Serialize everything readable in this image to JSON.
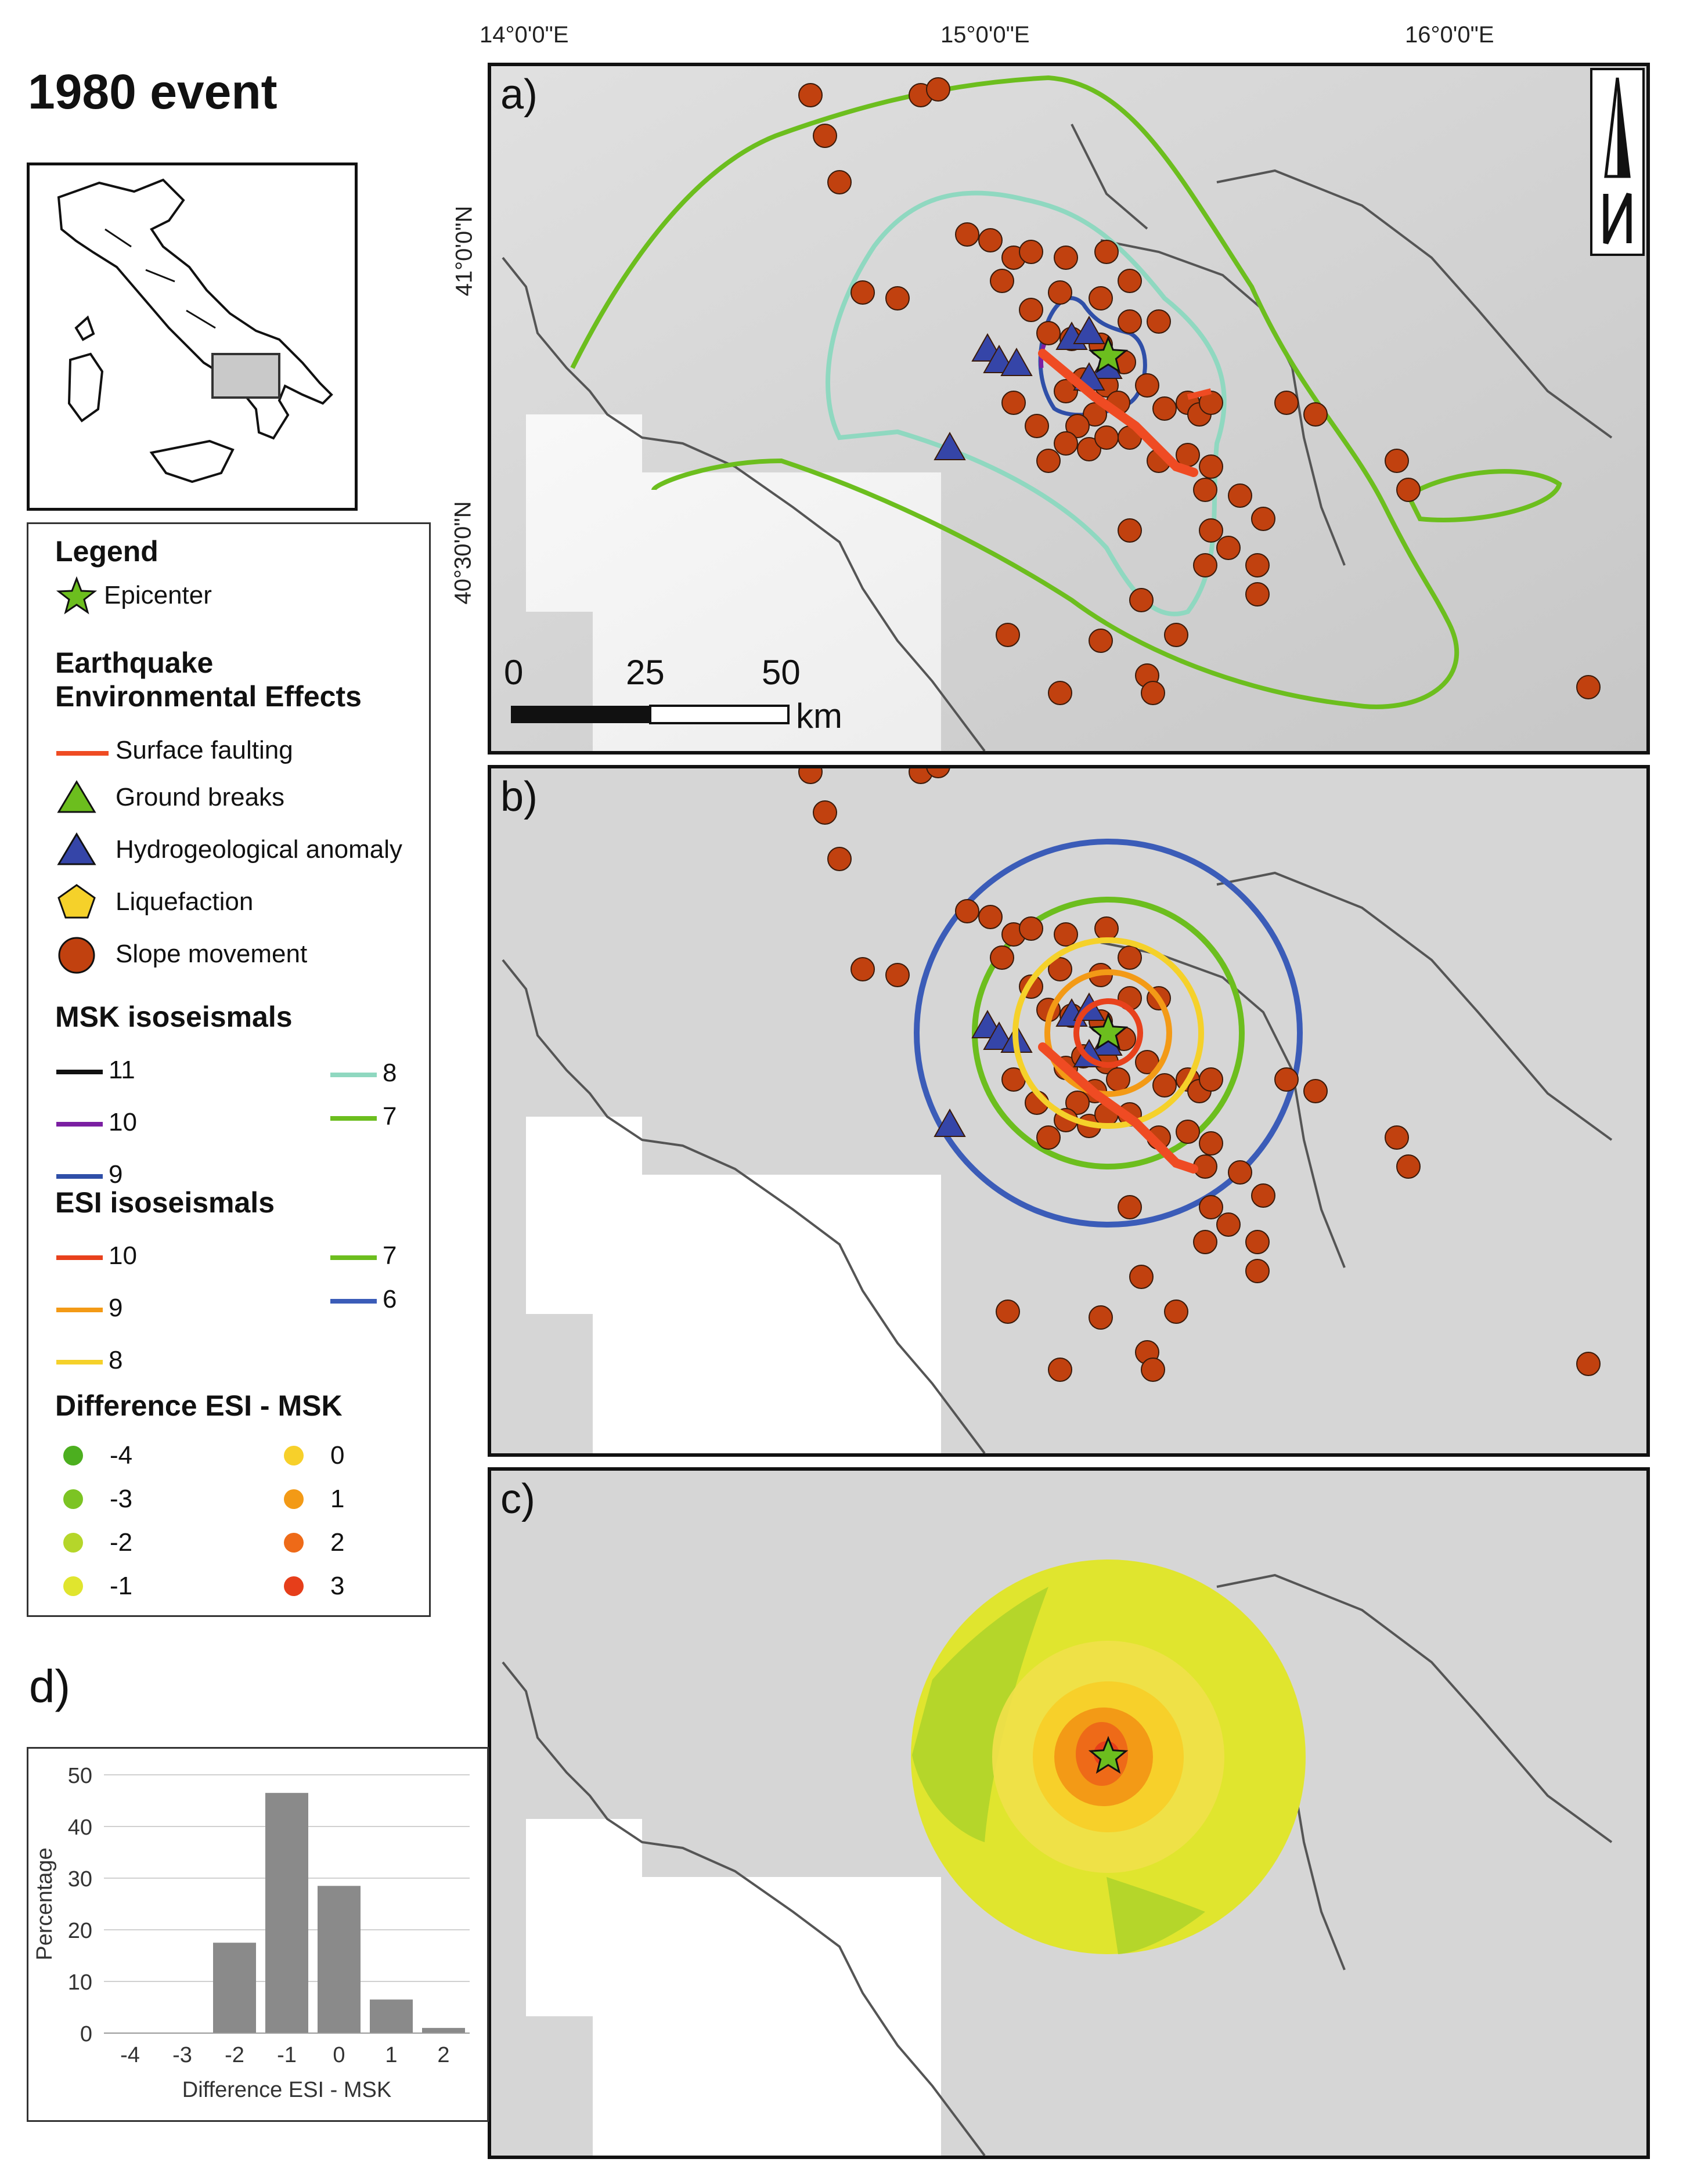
{
  "title": "1980 event",
  "coordinates": {
    "lon": [
      "14°0'0\"E",
      "15°0'0\"E",
      "16°0'0\"E"
    ],
    "lat": [
      "41°0'0\"N",
      "40°30'0\"N"
    ]
  },
  "panels": {
    "a": "a)",
    "b": "b)",
    "c": "c)"
  },
  "scale_bar": {
    "labels": [
      "0",
      "25",
      "50"
    ],
    "unit": "km"
  },
  "north_arrow": "N",
  "legend": {
    "title": "Legend",
    "epicenter": "Epicenter",
    "effects_title_line1": "Earthquake",
    "effects_title_line2": "Environmental Effects",
    "effects": {
      "surface_faulting": "Surface faulting",
      "ground_breaks": "Ground breaks",
      "hydrogeological": "Hydrogeological anomaly",
      "liquefaction": "Liquefaction",
      "slope_movement": "Slope movement"
    },
    "msk_title": "MSK isoseismals",
    "msk": [
      {
        "label": "11",
        "color": "#111111"
      },
      {
        "label": "10",
        "color": "#7b1fa2"
      },
      {
        "label": "9",
        "color": "#2f4fa8"
      },
      {
        "label": "8",
        "color": "#8fd8c0"
      },
      {
        "label": "7",
        "color": "#6cbe1e"
      }
    ],
    "esi_title": "ESI isoseismals",
    "esi": [
      {
        "label": "10",
        "color": "#e8411c"
      },
      {
        "label": "9",
        "color": "#f39a16"
      },
      {
        "label": "8",
        "color": "#f5d12a"
      },
      {
        "label": "7",
        "color": "#6cbe1e"
      },
      {
        "label": "6",
        "color": "#3b5cb8"
      }
    ],
    "diff_title": "Difference ESI - MSK",
    "diff": [
      {
        "label": "-4",
        "color": "#4caf1f"
      },
      {
        "label": "-3",
        "color": "#7cc423"
      },
      {
        "label": "-2",
        "color": "#b5d62a"
      },
      {
        "label": "-1",
        "color": "#e0e52e"
      },
      {
        "label": "0",
        "color": "#f7d02a"
      },
      {
        "label": "1",
        "color": "#f39a16"
      },
      {
        "label": "2",
        "color": "#ee6a18"
      },
      {
        "label": "3",
        "color": "#e63e1a"
      }
    ]
  },
  "colors": {
    "slope": "#c1410f",
    "hydro": "#3545a8",
    "fault": "#ef4b23",
    "epicenter": "#6cbe1e"
  },
  "hist_label": "d)",
  "chart_data": {
    "type": "bar",
    "categories": [
      "-4",
      "-3",
      "-2",
      "-1",
      "0",
      "1",
      "2"
    ],
    "values": [
      0,
      0,
      17.5,
      46.5,
      28.5,
      6.5,
      1
    ],
    "xlabel": "Difference ESI - MSK",
    "ylabel": "Percentage",
    "ylim": [
      0,
      50
    ],
    "yticks": [
      "0",
      "10",
      "20",
      "30",
      "40",
      "50"
    ],
    "grid": true,
    "color": "#8a8a8a"
  }
}
